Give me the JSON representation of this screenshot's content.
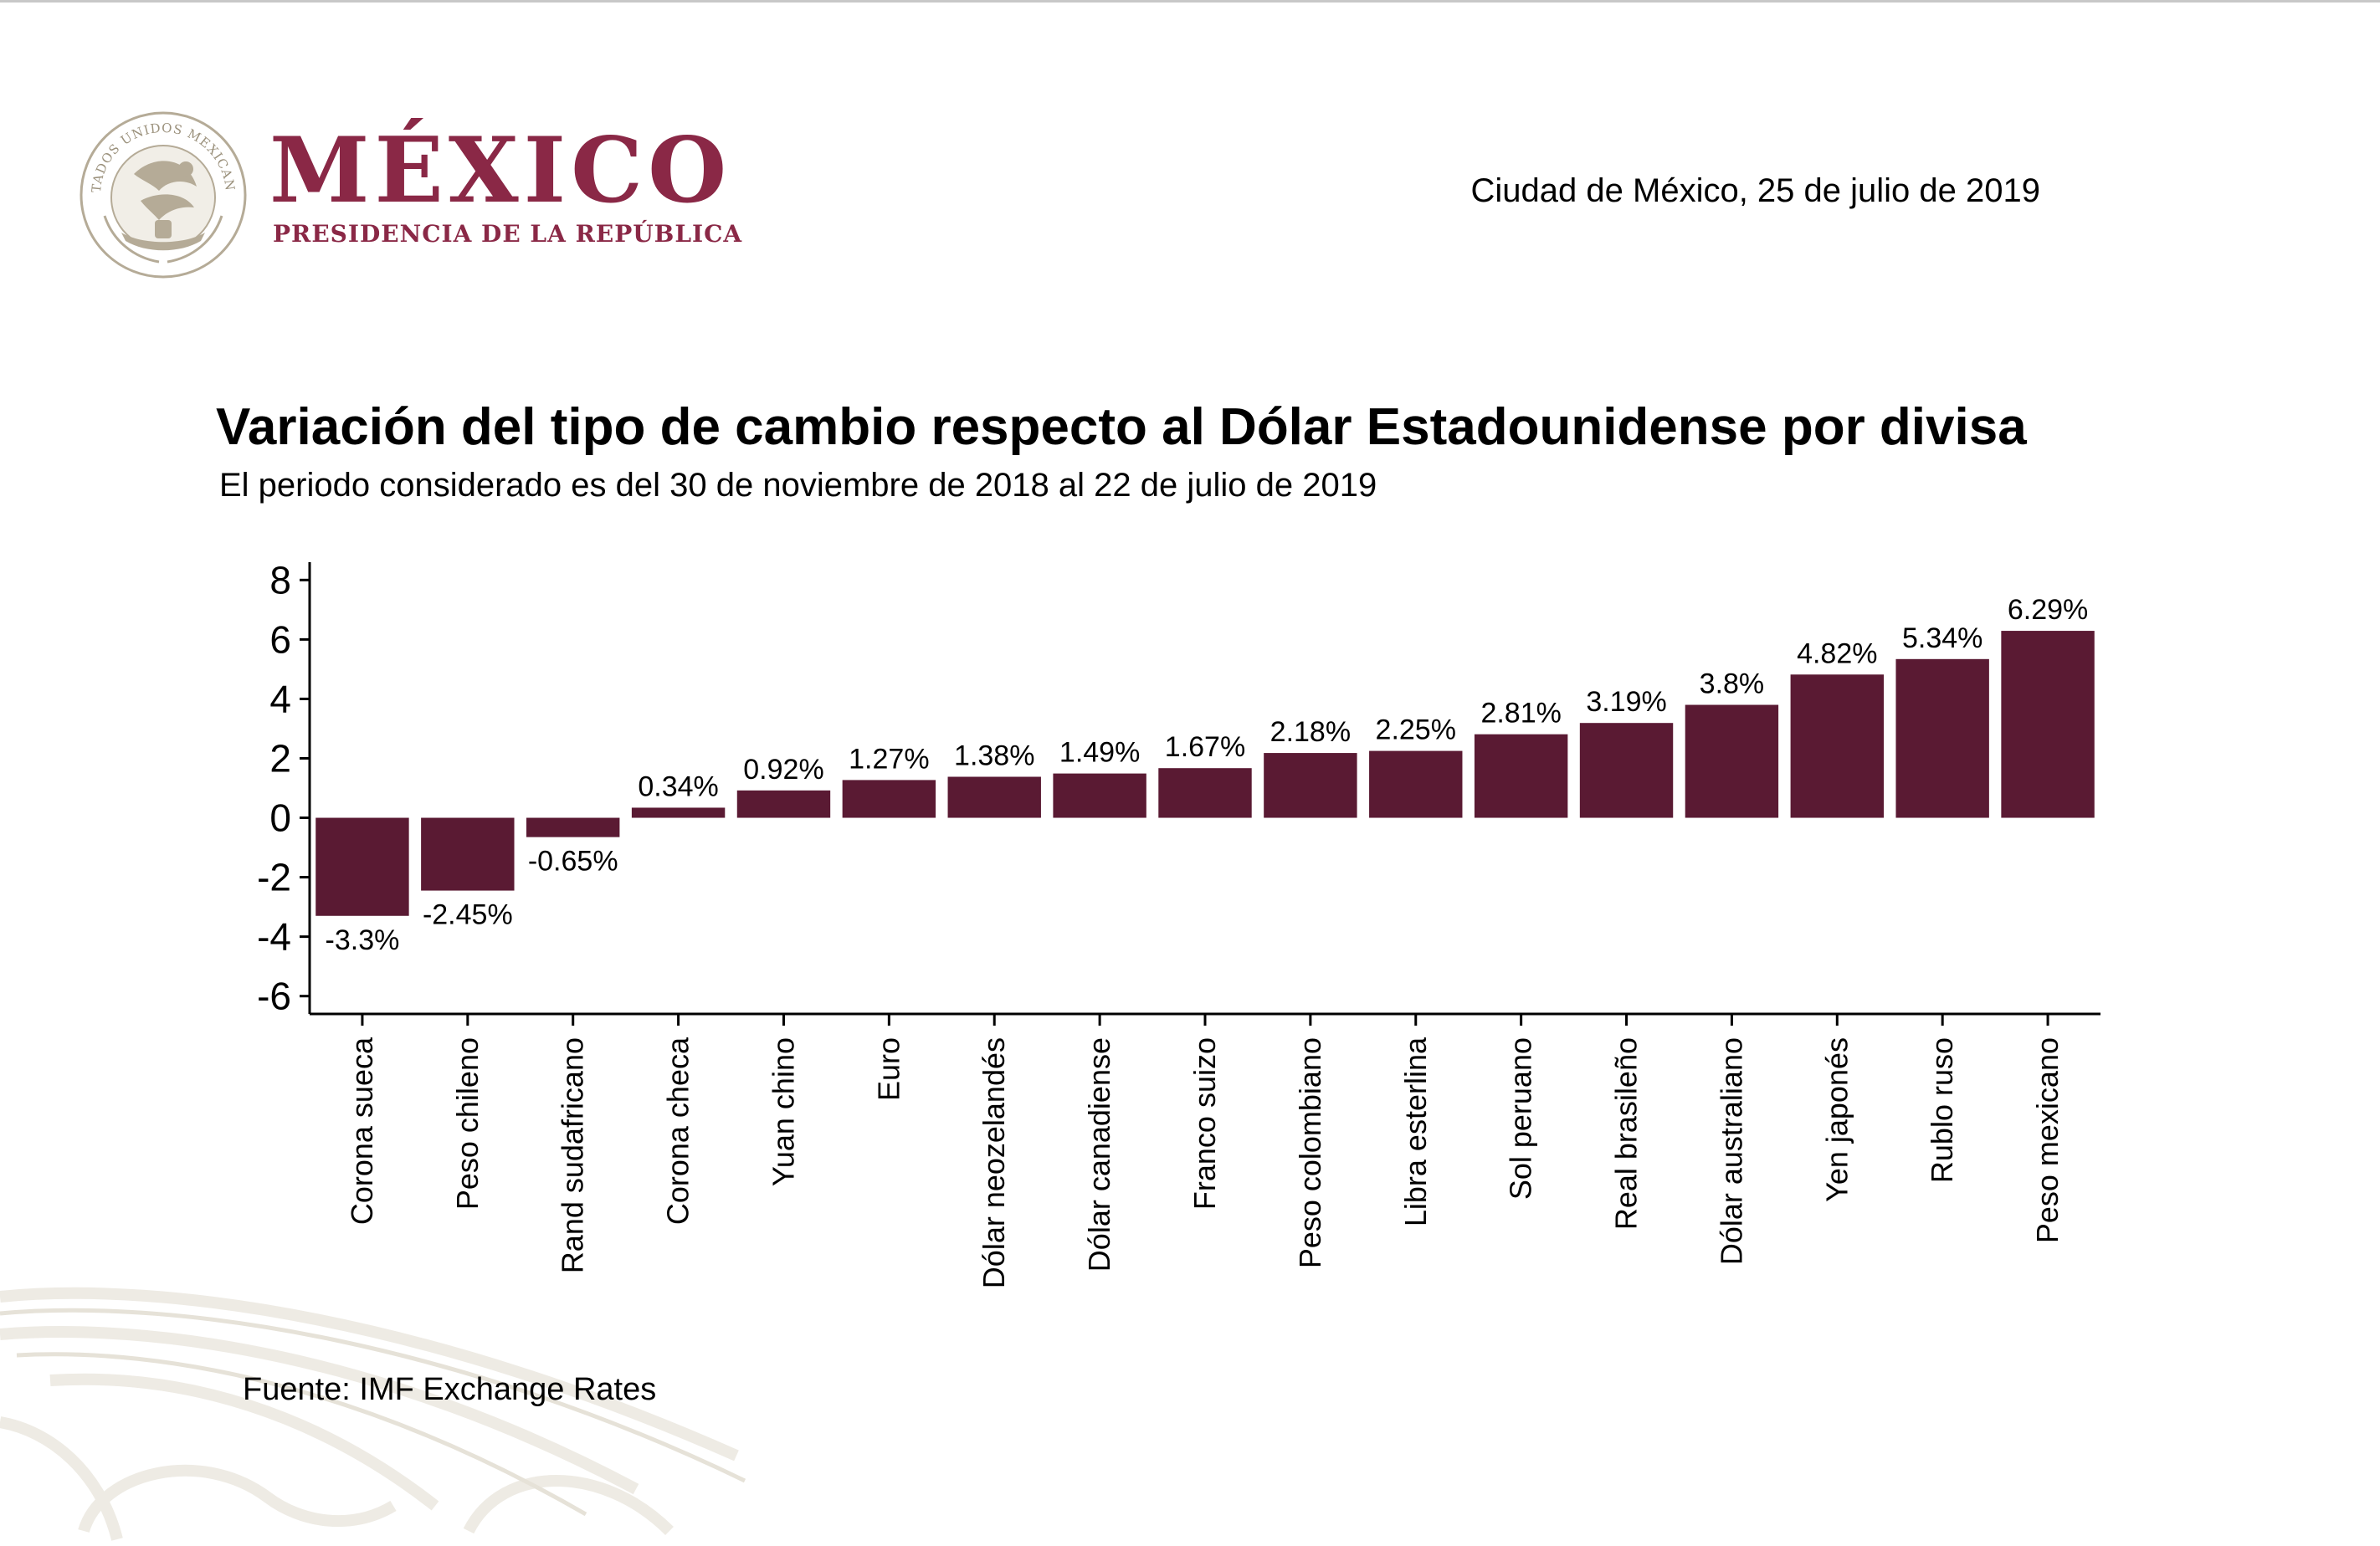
{
  "header": {
    "brand_name": "MÉXICO",
    "brand_subtitle": "PRESIDENCIA DE LA REPÚBLICA",
    "seal_text": "ESTADOS UNIDOS MEXICANOS",
    "dateline": "Ciudad de México, 25 de julio de 2019"
  },
  "colors": {
    "bar": "#5a1a33",
    "brand": "#8a2846",
    "seal": "#b5ab97"
  },
  "chart_data": {
    "type": "bar",
    "title": "Variación del tipo de cambio respecto al Dólar Estadounidense por divisa",
    "subtitle": "El periodo considerado es del 30 de noviembre de 2018 al 22 de julio de 2019",
    "xlabel": "",
    "ylabel": "",
    "ylim": [
      -6.6,
      8.6
    ],
    "yticks": [
      8,
      6,
      4,
      2,
      0,
      -2,
      -4,
      -6
    ],
    "grid": false,
    "categories": [
      "Corona sueca",
      "Peso chileno",
      "Rand sudafricano",
      "Corona checa",
      "Yuan chino",
      "Euro",
      "Dólar neozelandés",
      "Dólar canadiense",
      "Franco suizo",
      "Peso colombiano",
      "Libra esterlina",
      "Sol peruano",
      "Real brasileño",
      "Dólar australiano",
      "Yen japonés",
      "Rublo ruso",
      "Peso mexicano"
    ],
    "values": [
      -3.3,
      -2.45,
      -0.65,
      0.34,
      0.92,
      1.27,
      1.38,
      1.49,
      1.67,
      2.18,
      2.25,
      2.81,
      3.19,
      3.8,
      4.82,
      5.34,
      6.29
    ],
    "data_labels": [
      "-3.3%",
      "-2.45%",
      "-0.65%",
      "0.34%",
      "0.92%",
      "1.27%",
      "1.38%",
      "1.49%",
      "1.67%",
      "2.18%",
      "2.25%",
      "2.81%",
      "3.19%",
      "3.8%",
      "4.82%",
      "5.34%",
      "6.29%"
    ]
  },
  "footer": {
    "source": "Fuente: IMF Exchange Rates"
  }
}
